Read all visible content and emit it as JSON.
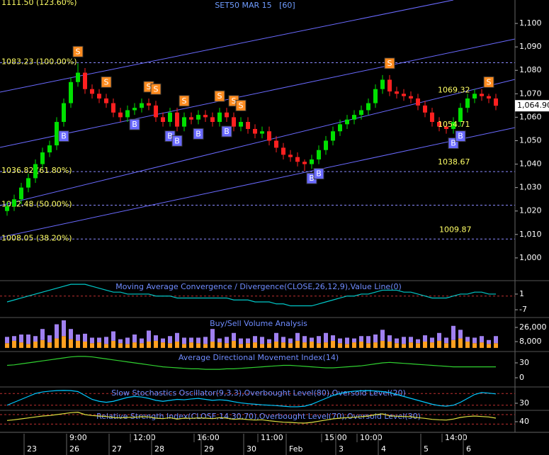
{
  "chart_data": [
    {
      "type": "candlestick",
      "title": "SET50 MAR 15   [60]",
      "categories": [
        null,
        null,
        null,
        "23",
        null,
        null,
        null,
        null,
        null,
        "26",
        null,
        null,
        null,
        null,
        null,
        "27",
        null,
        null,
        null,
        null,
        null,
        "28",
        null,
        null,
        null,
        null,
        null,
        null,
        "29",
        null,
        null,
        null,
        null,
        null,
        "30",
        null,
        null,
        null,
        null,
        null,
        "Feb",
        null,
        null,
        null,
        null,
        null,
        null,
        "3",
        null,
        null,
        null,
        null,
        null,
        "4",
        null,
        null,
        null,
        null,
        null,
        "5",
        null,
        null,
        null,
        null,
        null,
        "6",
        null,
        null,
        null,
        null
      ],
      "time_labels": [
        null,
        null,
        null,
        null,
        null,
        null,
        null,
        null,
        null,
        "9:00",
        null,
        null,
        null,
        null,
        null,
        null,
        null,
        null,
        "12:00",
        null,
        null,
        null,
        null,
        null,
        null,
        null,
        null,
        "16:00",
        null,
        null,
        null,
        null,
        null,
        null,
        null,
        null,
        "11:00",
        null,
        null,
        null,
        null,
        null,
        null,
        null,
        null,
        "15:00",
        null,
        null,
        null,
        null,
        "10:00",
        null,
        null,
        null,
        null,
        null,
        null,
        null,
        null,
        null,
        null,
        null,
        "14:00",
        null,
        null,
        null,
        null,
        null,
        null,
        null
      ],
      "open": [
        1020,
        1022,
        1025,
        1030,
        1034,
        1040,
        1045,
        1048,
        1058,
        1066,
        1075,
        1079,
        1072,
        1070,
        1068,
        1066,
        1062,
        1060,
        1063,
        1064,
        1066,
        1065,
        1060,
        1058,
        1062,
        1056,
        1060,
        1059,
        1061,
        1060,
        1058,
        1062,
        1060,
        1056,
        1058,
        1055,
        1053,
        1054,
        1050,
        1047,
        1044,
        1043,
        1041,
        1040,
        1042,
        1046,
        1050,
        1054,
        1057,
        1059,
        1061,
        1063,
        1066,
        1072,
        1076,
        1071,
        1070,
        1069,
        1068,
        1065,
        1062,
        1058,
        1056,
        1055,
        1058,
        1064,
        1068,
        1070,
        1069,
        1068
      ],
      "high": [
        1024,
        1027,
        1032,
        1036,
        1042,
        1047,
        1050,
        1060,
        1068,
        1077,
        1083,
        1081,
        1074,
        1072,
        1070,
        1068,
        1064,
        1065,
        1066,
        1068,
        1068,
        1067,
        1062,
        1064,
        1064,
        1062,
        1062,
        1063,
        1063,
        1062,
        1064,
        1064,
        1062,
        1060,
        1060,
        1057,
        1056,
        1056,
        1052,
        1049,
        1046,
        1045,
        1042,
        1044,
        1048,
        1052,
        1056,
        1059,
        1061,
        1063,
        1065,
        1068,
        1074,
        1078,
        1078,
        1073,
        1072,
        1071,
        1070,
        1067,
        1064,
        1060,
        1057,
        1060,
        1066,
        1070,
        1072,
        1072,
        1070,
        1070
      ],
      "low": [
        1018,
        1020,
        1023,
        1028,
        1032,
        1038,
        1043,
        1046,
        1056,
        1064,
        1073,
        1070,
        1068,
        1066,
        1064,
        1060,
        1058,
        1058,
        1061,
        1062,
        1063,
        1058,
        1056,
        1056,
        1054,
        1054,
        1057,
        1057,
        1058,
        1056,
        1056,
        1058,
        1054,
        1054,
        1053,
        1051,
        1051,
        1048,
        1045,
        1042,
        1041,
        1039,
        1037,
        1038,
        1040,
        1044,
        1048,
        1052,
        1055,
        1057,
        1059,
        1061,
        1064,
        1070,
        1069,
        1068,
        1067,
        1066,
        1063,
        1060,
        1056,
        1054,
        1053,
        1053,
        1056,
        1062,
        1066,
        1067,
        1066,
        1063
      ],
      "close": [
        1022,
        1025,
        1030,
        1034,
        1040,
        1045,
        1048,
        1058,
        1066,
        1075,
        1079,
        1072,
        1070,
        1068,
        1066,
        1062,
        1060,
        1063,
        1064,
        1066,
        1065,
        1060,
        1058,
        1062,
        1056,
        1060,
        1059,
        1061,
        1060,
        1058,
        1062,
        1060,
        1056,
        1058,
        1055,
        1053,
        1054,
        1050,
        1047,
        1044,
        1043,
        1041,
        1040,
        1042,
        1046,
        1050,
        1054,
        1057,
        1059,
        1061,
        1063,
        1066,
        1072,
        1076,
        1071,
        1070,
        1069,
        1068,
        1065,
        1062,
        1058,
        1056,
        1055,
        1058,
        1064,
        1068,
        1070,
        1069,
        1068,
        1064.9
      ],
      "signals": [
        null,
        null,
        null,
        null,
        null,
        null,
        null,
        null,
        "B",
        null,
        "S",
        null,
        null,
        null,
        "S",
        null,
        null,
        null,
        "B",
        null,
        "S",
        "S",
        null,
        "B",
        "B",
        "S",
        null,
        "B",
        null,
        null,
        "S",
        "B",
        "S",
        "S",
        null,
        null,
        null,
        null,
        null,
        null,
        null,
        null,
        null,
        "B",
        "B",
        null,
        null,
        null,
        null,
        null,
        null,
        null,
        null,
        null,
        "S",
        null,
        null,
        null,
        null,
        null,
        null,
        null,
        null,
        "B",
        "B",
        null,
        null,
        null,
        "S",
        null
      ],
      "up_color": "#00e000",
      "down_color": "#ff2020",
      "levels": [
        {
          "value": 1111.5,
          "label": "1111.50 (123.60%)"
        },
        {
          "value": 1083.23,
          "label": "1083.23 (100.00%)"
        },
        {
          "value": 1036.82,
          "label": "1036.82 (61.80%)"
        },
        {
          "value": 1022.48,
          "label": "1022.48 (50.00%)"
        },
        {
          "value": 1008.05,
          "label": "1008.05 (38.20%)"
        }
      ],
      "price_labels": [
        1069.32,
        1054.71,
        1038.67,
        1009.87
      ],
      "last": {
        "value": 1064.9,
        "label": "1,064.90"
      },
      "ylim": [
        990.6,
        1110
      ],
      "yticks": [
        {
          "value": 1100,
          "label": "1,100"
        },
        {
          "value": 1090,
          "label": "1,090"
        },
        {
          "value": 1080,
          "label": "1,080"
        },
        {
          "value": 1070,
          "label": "1,070"
        },
        {
          "value": 1060,
          "label": "1,060"
        },
        {
          "value": 1050,
          "label": "1,050"
        },
        {
          "value": 1040,
          "label": "1,040"
        },
        {
          "value": 1030,
          "label": "1,030"
        },
        {
          "value": 1020,
          "label": "1,020"
        },
        {
          "value": 1010,
          "label": "1,010"
        },
        {
          "value": 1000,
          "label": "1,000"
        }
      ]
    },
    {
      "type": "line",
      "title": "Moving Average Convergence / Divergence(CLOSE,26,12,9),Value Line(0)",
      "series": [
        {
          "color": "#00c8c8",
          "values": [
            -3,
            -2,
            -1,
            0,
            1,
            2,
            3,
            4,
            5,
            6,
            6,
            6,
            5,
            4,
            3,
            2,
            2,
            1,
            1,
            1,
            1,
            0,
            0,
            0,
            -1,
            -1,
            -1,
            -1,
            -1,
            -1,
            -1,
            -1,
            -2,
            -2,
            -2,
            -3,
            -3,
            -3,
            -4,
            -4,
            -5,
            -5,
            -5,
            -5,
            -4,
            -3,
            -2,
            -1,
            0,
            0,
            1,
            1,
            2,
            3,
            3,
            3,
            2,
            2,
            1,
            0,
            -1,
            -1,
            -1,
            0,
            1,
            1,
            2,
            2,
            1,
            1
          ]
        }
      ],
      "levels": [
        0
      ],
      "ylim": [
        -10.6,
        7.5
      ],
      "yticks": [
        1,
        -7
      ]
    },
    {
      "type": "stacked_bar",
      "title": "Buy/Sell Volume Analysis",
      "series": [
        {
          "color": "#ffa020",
          "values": [
            6000,
            9000,
            7000,
            5000,
            8000,
            10000,
            7000,
            12000,
            15000,
            11000,
            9000,
            8000,
            6000,
            7000,
            5000,
            9000,
            6000,
            5000,
            7000,
            6000,
            8000,
            9000,
            7000,
            6000,
            8000,
            5000,
            7000,
            6000,
            5000,
            8000,
            7000,
            6000,
            9000,
            5000,
            6000,
            7000,
            5000,
            6000,
            8000,
            7000,
            6000,
            9000,
            7000,
            8000,
            6000,
            7000,
            9000,
            6000,
            5000,
            7000,
            8000,
            6000,
            7000,
            9000,
            8000,
            6000,
            5000,
            7000,
            6000,
            8000,
            7000,
            9000,
            6000,
            10000,
            12000,
            8000,
            6000,
            7000,
            5000,
            6000
          ]
        },
        {
          "color": "#a080f0",
          "values": [
            8000,
            6000,
            10000,
            12000,
            7000,
            14000,
            9000,
            18000,
            20000,
            13000,
            8000,
            10000,
            7000,
            6000,
            9000,
            12000,
            5000,
            8000,
            10000,
            6000,
            14000,
            7000,
            5000,
            9000,
            11000,
            8000,
            6000,
            7000,
            9000,
            16000,
            5000,
            8000,
            10000,
            7000,
            6000,
            8000,
            9000,
            5000,
            11000,
            7000,
            6000,
            10000,
            8000,
            5000,
            9000,
            12000,
            7000,
            6000,
            8000,
            5000,
            7000,
            9000,
            10000,
            14000,
            8000,
            6000,
            9000,
            7000,
            5000,
            8000,
            6000,
            10000,
            7000,
            18000,
            11000,
            6000,
            7000,
            8000,
            5000,
            9000
          ]
        }
      ],
      "ylim": [
        -3700,
        37700
      ],
      "yticks": [
        {
          "value": 26000,
          "label": "26,000"
        },
        {
          "value": 8000,
          "label": "8,000"
        }
      ]
    },
    {
      "type": "line",
      "title": "Average Directional Movement Index(14)",
      "series": [
        {
          "color": "#30d030",
          "values": [
            25,
            26,
            28,
            30,
            32,
            34,
            36,
            38,
            40,
            42,
            43,
            43,
            42,
            40,
            38,
            36,
            34,
            32,
            30,
            28,
            26,
            24,
            22,
            21,
            20,
            19,
            18,
            18,
            17,
            17,
            17,
            18,
            18,
            19,
            20,
            21,
            22,
            23,
            24,
            25,
            25,
            24,
            23,
            22,
            21,
            20,
            20,
            21,
            22,
            23,
            24,
            26,
            28,
            30,
            31,
            30,
            29,
            28,
            27,
            26,
            25,
            24,
            23,
            22,
            22,
            22,
            22,
            22,
            22,
            22
          ]
        }
      ],
      "ylim": [
        -17.1,
        51.4
      ],
      "yticks": [
        30,
        0
      ]
    },
    {
      "type": "line",
      "title": "Slow Stochastics Oscillator(9,3,3),Overbought Level(80),Oversold Level(20)",
      "series": [
        {
          "color": "#00c8ff",
          "values": [
            20,
            35,
            50,
            65,
            80,
            88,
            92,
            95,
            96,
            95,
            90,
            70,
            50,
            40,
            35,
            40,
            50,
            60,
            65,
            62,
            55,
            45,
            40,
            45,
            50,
            48,
            52,
            55,
            50,
            45,
            48,
            45,
            38,
            32,
            28,
            25,
            22,
            20,
            18,
            15,
            12,
            12,
            15,
            25,
            40,
            55,
            70,
            80,
            88,
            92,
            94,
            95,
            93,
            90,
            85,
            75,
            65,
            55,
            45,
            35,
            25,
            18,
            15,
            20,
            35,
            55,
            75,
            85,
            82,
            78
          ]
        }
      ],
      "levels": [
        80,
        20
      ],
      "ylim": [
        -10,
        110
      ],
      "yticks": [
        30
      ]
    },
    {
      "type": "line",
      "title": "Relative Strength Index(CLOSE,14,30,70),Overbought Level(70),Oversold Level(30)",
      "series": [
        {
          "color": "#e0e040",
          "values": [
            45,
            48,
            52,
            56,
            60,
            64,
            66,
            70,
            74,
            78,
            80,
            70,
            66,
            64,
            62,
            58,
            56,
            58,
            59,
            61,
            60,
            55,
            53,
            57,
            51,
            55,
            54,
            56,
            55,
            53,
            57,
            55,
            50,
            52,
            49,
            47,
            48,
            44,
            41,
            38,
            37,
            35,
            34,
            37,
            42,
            47,
            52,
            55,
            57,
            59,
            61,
            64,
            70,
            73,
            65,
            63,
            62,
            61,
            57,
            54,
            50,
            48,
            47,
            51,
            58,
            62,
            64,
            62,
            60,
            55
          ]
        }
      ],
      "levels": [
        70,
        30
      ],
      "ylim": [
        -5,
        85
      ],
      "yticks": [
        40
      ]
    }
  ]
}
